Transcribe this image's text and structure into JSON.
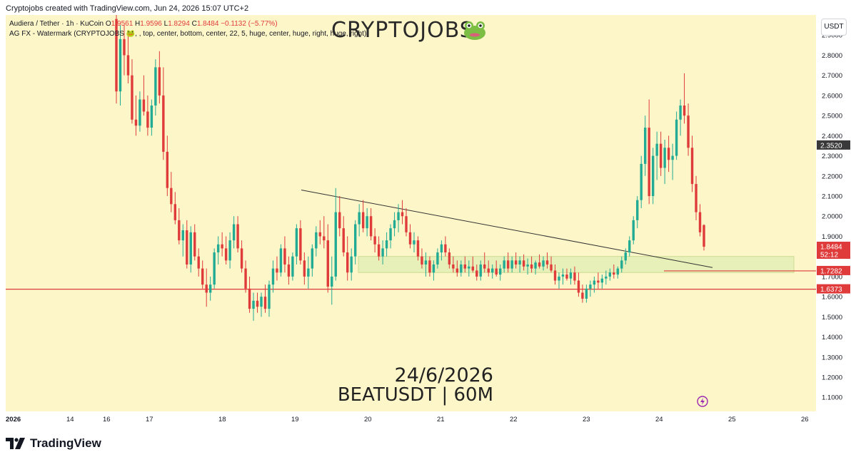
{
  "header": {
    "credit": "Cryptojobs created with TradingView.com, Jun 24, 2026 15:07 UTC+2"
  },
  "legend": {
    "symbol_line": "Audiera / Tether · 1h · KuCoin",
    "open_label": "O",
    "open": "1.9561",
    "high_label": "H",
    "high": "1.9596",
    "low_label": "L",
    "low": "1.8294",
    "close_label": "C",
    "close": "1.8484",
    "change": "−0.1132 (−5.77%)",
    "indicator_line": "AG FX - Watermark (CRYPTOJOBS 🐸, , top, center, bottom, center, 22, 5, huge, center, huge, right, huge, right)"
  },
  "watermark": {
    "text": "CRYPTOJOBS",
    "icon": "frog-icon"
  },
  "caption": {
    "date": "24/6/2026",
    "symbol": "BEATUSDT | 60M"
  },
  "currency": "USDT",
  "footer": {
    "brand": "TradingView",
    "icon": "tradingview-logo-icon"
  },
  "colors": {
    "background": "#fdf6c8",
    "up": "#22ab94",
    "down": "#e03b3b",
    "zone": "#e4f0b6",
    "line": "#333333"
  },
  "chart_data": {
    "type": "candlestick",
    "title": "Audiera / Tether · 1h · KuCoin",
    "ylim": [
      1.03,
      3.0
    ],
    "y_ticks": [
      "2.9000",
      "2.8000",
      "2.7000",
      "2.6000",
      "2.5000",
      "2.4000",
      "2.3000",
      "2.2000",
      "2.1000",
      "2.0000",
      "1.9000",
      "1.8000",
      "1.7000",
      "1.6000",
      "1.5000",
      "1.4000",
      "1.3000",
      "1.2000",
      "1.1000"
    ],
    "x_ticks": [
      "2026",
      "14",
      "16",
      "17",
      "18",
      "19",
      "20",
      "21",
      "22",
      "23",
      "24",
      "25",
      "26"
    ],
    "price_labels": [
      {
        "text": "2.3520",
        "value": 2.352,
        "style": "dark"
      },
      {
        "text": "1.8484",
        "value": 1.8484,
        "style": "red",
        "sub": "52:12"
      },
      {
        "text": "1.7282",
        "value": 1.7282,
        "style": "red"
      },
      {
        "text": "1.6373",
        "value": 1.6373,
        "style": "red"
      }
    ],
    "horizontal_lines": [
      {
        "value": 1.6373,
        "from": "chart-start"
      },
      {
        "value": 1.7282,
        "from": "day 24"
      }
    ],
    "zone": {
      "low": 1.72,
      "high": 1.8,
      "from": "day 20",
      "to": "day 25"
    },
    "trendline": {
      "start": {
        "day": "19",
        "price": 2.13
      },
      "end": {
        "day": "24-25",
        "price": 1.745
      }
    },
    "candles": [
      {
        "o": 2.98,
        "h": 3.0,
        "l": 2.56,
        "c": 2.62
      },
      {
        "o": 2.62,
        "h": 2.95,
        "l": 2.55,
        "c": 2.88
      },
      {
        "o": 2.88,
        "h": 2.95,
        "l": 2.7,
        "c": 2.8
      },
      {
        "o": 2.8,
        "h": 2.92,
        "l": 2.66,
        "c": 2.7
      },
      {
        "o": 2.7,
        "h": 2.78,
        "l": 2.46,
        "c": 2.48
      },
      {
        "o": 2.48,
        "h": 2.6,
        "l": 2.4,
        "c": 2.45
      },
      {
        "o": 2.45,
        "h": 2.62,
        "l": 2.42,
        "c": 2.58
      },
      {
        "o": 2.58,
        "h": 2.7,
        "l": 2.5,
        "c": 2.52
      },
      {
        "o": 2.52,
        "h": 2.6,
        "l": 2.4,
        "c": 2.44
      },
      {
        "o": 2.44,
        "h": 2.58,
        "l": 2.4,
        "c": 2.55
      },
      {
        "o": 2.55,
        "h": 2.78,
        "l": 2.5,
        "c": 2.74
      },
      {
        "o": 2.74,
        "h": 2.82,
        "l": 2.56,
        "c": 2.6
      },
      {
        "o": 2.6,
        "h": 2.74,
        "l": 2.28,
        "c": 2.32
      },
      {
        "o": 2.32,
        "h": 2.4,
        "l": 2.1,
        "c": 2.14
      },
      {
        "o": 2.14,
        "h": 2.22,
        "l": 2.02,
        "c": 2.06
      },
      {
        "o": 2.06,
        "h": 2.12,
        "l": 1.96,
        "c": 1.98
      },
      {
        "o": 1.98,
        "h": 2.04,
        "l": 1.86,
        "c": 1.88
      },
      {
        "o": 1.88,
        "h": 1.96,
        "l": 1.8,
        "c": 1.93
      },
      {
        "o": 1.93,
        "h": 1.98,
        "l": 1.74,
        "c": 1.76
      },
      {
        "o": 1.76,
        "h": 1.95,
        "l": 1.72,
        "c": 1.92
      },
      {
        "o": 1.92,
        "h": 1.96,
        "l": 1.78,
        "c": 1.8
      },
      {
        "o": 1.8,
        "h": 1.84,
        "l": 1.7,
        "c": 1.74
      },
      {
        "o": 1.74,
        "h": 1.78,
        "l": 1.64,
        "c": 1.66
      },
      {
        "o": 1.66,
        "h": 1.74,
        "l": 1.55,
        "c": 1.62
      },
      {
        "o": 1.62,
        "h": 1.7,
        "l": 1.58,
        "c": 1.66
      },
      {
        "o": 1.66,
        "h": 1.84,
        "l": 1.64,
        "c": 1.82
      },
      {
        "o": 1.82,
        "h": 1.9,
        "l": 1.76,
        "c": 1.86
      },
      {
        "o": 1.86,
        "h": 1.92,
        "l": 1.8,
        "c": 1.84
      },
      {
        "o": 1.84,
        "h": 1.9,
        "l": 1.76,
        "c": 1.78
      },
      {
        "o": 1.78,
        "h": 1.92,
        "l": 1.74,
        "c": 1.88
      },
      {
        "o": 1.88,
        "h": 2.0,
        "l": 1.84,
        "c": 1.96
      },
      {
        "o": 1.96,
        "h": 2.0,
        "l": 1.82,
        "c": 1.84
      },
      {
        "o": 1.84,
        "h": 1.88,
        "l": 1.72,
        "c": 1.74
      },
      {
        "o": 1.74,
        "h": 1.78,
        "l": 1.62,
        "c": 1.64
      },
      {
        "o": 1.64,
        "h": 1.7,
        "l": 1.52,
        "c": 1.54
      },
      {
        "o": 1.54,
        "h": 1.62,
        "l": 1.48,
        "c": 1.58
      },
      {
        "o": 1.58,
        "h": 1.62,
        "l": 1.52,
        "c": 1.55
      },
      {
        "o": 1.55,
        "h": 1.62,
        "l": 1.5,
        "c": 1.6
      },
      {
        "o": 1.6,
        "h": 1.66,
        "l": 1.52,
        "c": 1.54
      },
      {
        "o": 1.54,
        "h": 1.68,
        "l": 1.5,
        "c": 1.66
      },
      {
        "o": 1.66,
        "h": 1.78,
        "l": 1.62,
        "c": 1.74
      },
      {
        "o": 1.74,
        "h": 1.8,
        "l": 1.68,
        "c": 1.72
      },
      {
        "o": 1.72,
        "h": 1.86,
        "l": 1.7,
        "c": 1.84
      },
      {
        "o": 1.84,
        "h": 1.9,
        "l": 1.72,
        "c": 1.76
      },
      {
        "o": 1.76,
        "h": 1.8,
        "l": 1.66,
        "c": 1.7
      },
      {
        "o": 1.7,
        "h": 1.82,
        "l": 1.68,
        "c": 1.8
      },
      {
        "o": 1.8,
        "h": 1.96,
        "l": 1.76,
        "c": 1.94
      },
      {
        "o": 1.94,
        "h": 1.98,
        "l": 1.76,
        "c": 1.78
      },
      {
        "o": 1.78,
        "h": 1.82,
        "l": 1.66,
        "c": 1.7
      },
      {
        "o": 1.7,
        "h": 1.8,
        "l": 1.64,
        "c": 1.74
      },
      {
        "o": 1.74,
        "h": 1.86,
        "l": 1.7,
        "c": 1.84
      },
      {
        "o": 1.84,
        "h": 1.95,
        "l": 1.8,
        "c": 1.92
      },
      {
        "o": 1.92,
        "h": 1.98,
        "l": 1.86,
        "c": 1.9
      },
      {
        "o": 1.9,
        "h": 2.0,
        "l": 1.84,
        "c": 1.88
      },
      {
        "o": 1.88,
        "h": 1.96,
        "l": 1.62,
        "c": 1.65
      },
      {
        "o": 1.65,
        "h": 1.8,
        "l": 1.56,
        "c": 1.7
      },
      {
        "o": 1.7,
        "h": 2.14,
        "l": 1.68,
        "c": 2.02
      },
      {
        "o": 2.02,
        "h": 2.1,
        "l": 1.9,
        "c": 1.94
      },
      {
        "o": 1.94,
        "h": 2.0,
        "l": 1.8,
        "c": 1.82
      },
      {
        "o": 1.82,
        "h": 1.9,
        "l": 1.68,
        "c": 1.72
      },
      {
        "o": 1.72,
        "h": 1.84,
        "l": 1.68,
        "c": 1.8
      },
      {
        "o": 1.8,
        "h": 1.98,
        "l": 1.76,
        "c": 1.96
      },
      {
        "o": 1.96,
        "h": 2.06,
        "l": 1.9,
        "c": 2.02
      },
      {
        "o": 2.02,
        "h": 2.08,
        "l": 1.92,
        "c": 1.94
      },
      {
        "o": 1.94,
        "h": 2.04,
        "l": 1.9,
        "c": 2.0
      },
      {
        "o": 2.0,
        "h": 2.04,
        "l": 1.88,
        "c": 1.9
      },
      {
        "o": 1.9,
        "h": 1.94,
        "l": 1.82,
        "c": 1.86
      },
      {
        "o": 1.86,
        "h": 1.9,
        "l": 1.78,
        "c": 1.8
      },
      {
        "o": 1.8,
        "h": 1.88,
        "l": 1.76,
        "c": 1.84
      },
      {
        "o": 1.84,
        "h": 1.92,
        "l": 1.8,
        "c": 1.88
      },
      {
        "o": 1.88,
        "h": 1.96,
        "l": 1.84,
        "c": 1.94
      },
      {
        "o": 1.94,
        "h": 2.02,
        "l": 1.9,
        "c": 1.98
      },
      {
        "o": 1.98,
        "h": 2.06,
        "l": 1.92,
        "c": 2.02
      },
      {
        "o": 2.02,
        "h": 2.08,
        "l": 1.96,
        "c": 2.0
      },
      {
        "o": 2.0,
        "h": 2.04,
        "l": 1.9,
        "c": 1.92
      },
      {
        "o": 1.92,
        "h": 1.96,
        "l": 1.84,
        "c": 1.86
      },
      {
        "o": 1.86,
        "h": 1.92,
        "l": 1.82,
        "c": 1.88
      },
      {
        "o": 1.88,
        "h": 1.9,
        "l": 1.78,
        "c": 1.8
      },
      {
        "o": 1.8,
        "h": 1.84,
        "l": 1.74,
        "c": 1.76
      },
      {
        "o": 1.76,
        "h": 1.82,
        "l": 1.7,
        "c": 1.78
      },
      {
        "o": 1.78,
        "h": 1.8,
        "l": 1.7,
        "c": 1.72
      },
      {
        "o": 1.72,
        "h": 1.78,
        "l": 1.68,
        "c": 1.76
      },
      {
        "o": 1.76,
        "h": 1.84,
        "l": 1.74,
        "c": 1.82
      },
      {
        "o": 1.82,
        "h": 1.88,
        "l": 1.78,
        "c": 1.86
      },
      {
        "o": 1.86,
        "h": 1.9,
        "l": 1.8,
        "c": 1.82
      },
      {
        "o": 1.82,
        "h": 1.84,
        "l": 1.74,
        "c": 1.76
      },
      {
        "o": 1.76,
        "h": 1.8,
        "l": 1.72,
        "c": 1.74
      },
      {
        "o": 1.74,
        "h": 1.78,
        "l": 1.7,
        "c": 1.72
      },
      {
        "o": 1.72,
        "h": 1.78,
        "l": 1.7,
        "c": 1.76
      },
      {
        "o": 1.76,
        "h": 1.8,
        "l": 1.72,
        "c": 1.74
      },
      {
        "o": 1.74,
        "h": 1.78,
        "l": 1.7,
        "c": 1.75
      },
      {
        "o": 1.75,
        "h": 1.8,
        "l": 1.72,
        "c": 1.73
      },
      {
        "o": 1.73,
        "h": 1.76,
        "l": 1.68,
        "c": 1.7
      },
      {
        "o": 1.7,
        "h": 1.78,
        "l": 1.68,
        "c": 1.76
      },
      {
        "o": 1.76,
        "h": 1.82,
        "l": 1.72,
        "c": 1.74
      },
      {
        "o": 1.74,
        "h": 1.78,
        "l": 1.7,
        "c": 1.72
      },
      {
        "o": 1.72,
        "h": 1.76,
        "l": 1.69,
        "c": 1.74
      },
      {
        "o": 1.74,
        "h": 1.78,
        "l": 1.7,
        "c": 1.71
      },
      {
        "o": 1.71,
        "h": 1.76,
        "l": 1.68,
        "c": 1.74
      },
      {
        "o": 1.74,
        "h": 1.8,
        "l": 1.72,
        "c": 1.78
      },
      {
        "o": 1.78,
        "h": 1.82,
        "l": 1.72,
        "c": 1.74
      },
      {
        "o": 1.74,
        "h": 1.8,
        "l": 1.72,
        "c": 1.78
      },
      {
        "o": 1.78,
        "h": 1.82,
        "l": 1.74,
        "c": 1.76
      },
      {
        "o": 1.76,
        "h": 1.8,
        "l": 1.72,
        "c": 1.78
      },
      {
        "o": 1.78,
        "h": 1.81,
        "l": 1.73,
        "c": 1.75
      },
      {
        "o": 1.75,
        "h": 1.79,
        "l": 1.71,
        "c": 1.76
      },
      {
        "o": 1.76,
        "h": 1.8,
        "l": 1.72,
        "c": 1.74
      },
      {
        "o": 1.74,
        "h": 1.78,
        "l": 1.71,
        "c": 1.77
      },
      {
        "o": 1.77,
        "h": 1.81,
        "l": 1.74,
        "c": 1.75
      },
      {
        "o": 1.75,
        "h": 1.8,
        "l": 1.73,
        "c": 1.78
      },
      {
        "o": 1.78,
        "h": 1.82,
        "l": 1.74,
        "c": 1.76
      },
      {
        "o": 1.76,
        "h": 1.8,
        "l": 1.72,
        "c": 1.73
      },
      {
        "o": 1.73,
        "h": 1.76,
        "l": 1.66,
        "c": 1.68
      },
      {
        "o": 1.68,
        "h": 1.72,
        "l": 1.64,
        "c": 1.7
      },
      {
        "o": 1.7,
        "h": 1.74,
        "l": 1.66,
        "c": 1.71
      },
      {
        "o": 1.71,
        "h": 1.74,
        "l": 1.68,
        "c": 1.69
      },
      {
        "o": 1.69,
        "h": 1.74,
        "l": 1.66,
        "c": 1.72
      },
      {
        "o": 1.72,
        "h": 1.75,
        "l": 1.66,
        "c": 1.68
      },
      {
        "o": 1.68,
        "h": 1.72,
        "l": 1.6,
        "c": 1.62
      },
      {
        "o": 1.62,
        "h": 1.66,
        "l": 1.57,
        "c": 1.59
      },
      {
        "o": 1.59,
        "h": 1.66,
        "l": 1.57,
        "c": 1.64
      },
      {
        "o": 1.64,
        "h": 1.68,
        "l": 1.6,
        "c": 1.66
      },
      {
        "o": 1.66,
        "h": 1.7,
        "l": 1.62,
        "c": 1.68
      },
      {
        "o": 1.68,
        "h": 1.72,
        "l": 1.64,
        "c": 1.67
      },
      {
        "o": 1.67,
        "h": 1.71,
        "l": 1.64,
        "c": 1.69
      },
      {
        "o": 1.69,
        "h": 1.73,
        "l": 1.66,
        "c": 1.7
      },
      {
        "o": 1.7,
        "h": 1.74,
        "l": 1.68,
        "c": 1.72
      },
      {
        "o": 1.72,
        "h": 1.76,
        "l": 1.69,
        "c": 1.71
      },
      {
        "o": 1.71,
        "h": 1.75,
        "l": 1.69,
        "c": 1.74
      },
      {
        "o": 1.74,
        "h": 1.8,
        "l": 1.72,
        "c": 1.78
      },
      {
        "o": 1.78,
        "h": 1.84,
        "l": 1.76,
        "c": 1.82
      },
      {
        "o": 1.82,
        "h": 1.9,
        "l": 1.8,
        "c": 1.88
      },
      {
        "o": 1.88,
        "h": 2.0,
        "l": 1.86,
        "c": 1.98
      },
      {
        "o": 1.98,
        "h": 2.1,
        "l": 1.94,
        "c": 2.08
      },
      {
        "o": 2.08,
        "h": 2.3,
        "l": 2.04,
        "c": 2.26
      },
      {
        "o": 2.26,
        "h": 2.5,
        "l": 2.2,
        "c": 2.44
      },
      {
        "o": 2.44,
        "h": 2.58,
        "l": 2.06,
        "c": 2.1
      },
      {
        "o": 2.1,
        "h": 2.34,
        "l": 2.06,
        "c": 2.3
      },
      {
        "o": 2.3,
        "h": 2.42,
        "l": 2.18,
        "c": 2.36
      },
      {
        "o": 2.36,
        "h": 2.42,
        "l": 2.2,
        "c": 2.24
      },
      {
        "o": 2.24,
        "h": 2.38,
        "l": 2.16,
        "c": 2.34
      },
      {
        "o": 2.34,
        "h": 2.4,
        "l": 2.22,
        "c": 2.28
      },
      {
        "o": 2.28,
        "h": 2.36,
        "l": 2.18,
        "c": 2.3
      },
      {
        "o": 2.3,
        "h": 2.52,
        "l": 2.28,
        "c": 2.48
      },
      {
        "o": 2.48,
        "h": 2.58,
        "l": 2.4,
        "c": 2.55
      },
      {
        "o": 2.55,
        "h": 2.71,
        "l": 2.46,
        "c": 2.5
      },
      {
        "o": 2.5,
        "h": 2.56,
        "l": 2.3,
        "c": 2.34
      },
      {
        "o": 2.34,
        "h": 2.4,
        "l": 2.12,
        "c": 2.16
      },
      {
        "o": 2.16,
        "h": 2.2,
        "l": 1.98,
        "c": 2.02
      },
      {
        "o": 2.02,
        "h": 2.06,
        "l": 1.9,
        "c": 1.92
      },
      {
        "o": 1.9561,
        "h": 1.9596,
        "l": 1.8294,
        "c": 1.8484
      }
    ]
  }
}
